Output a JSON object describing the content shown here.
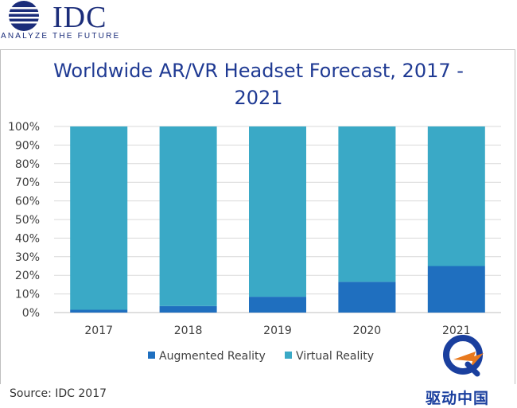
{
  "logo": {
    "name": "IDC",
    "tagline": "ANALYZE THE FUTURE"
  },
  "chart_data": {
    "type": "bar",
    "stacked": true,
    "title_line1": "Worldwide AR/VR Headset Forecast, 2017 -",
    "title_line2": "2021",
    "categories": [
      "2017",
      "2018",
      "2019",
      "2020",
      "2021"
    ],
    "series": [
      {
        "name": "Augmented Reality",
        "color": "#1f6fbf",
        "values": [
          1.5,
          3.5,
          8.5,
          16.5,
          25
        ]
      },
      {
        "name": "Virtual Reality",
        "color": "#3aa9c6",
        "values": [
          98.5,
          96.5,
          91.5,
          83.5,
          75
        ]
      }
    ],
    "yticks": [
      "0%",
      "10%",
      "20%",
      "30%",
      "40%",
      "50%",
      "60%",
      "70%",
      "80%",
      "90%",
      "100%"
    ],
    "ylim": [
      0,
      100
    ],
    "grid": true,
    "legend_position": "bottom"
  },
  "source": "Source: IDC 2017",
  "watermark": "驱动中国"
}
